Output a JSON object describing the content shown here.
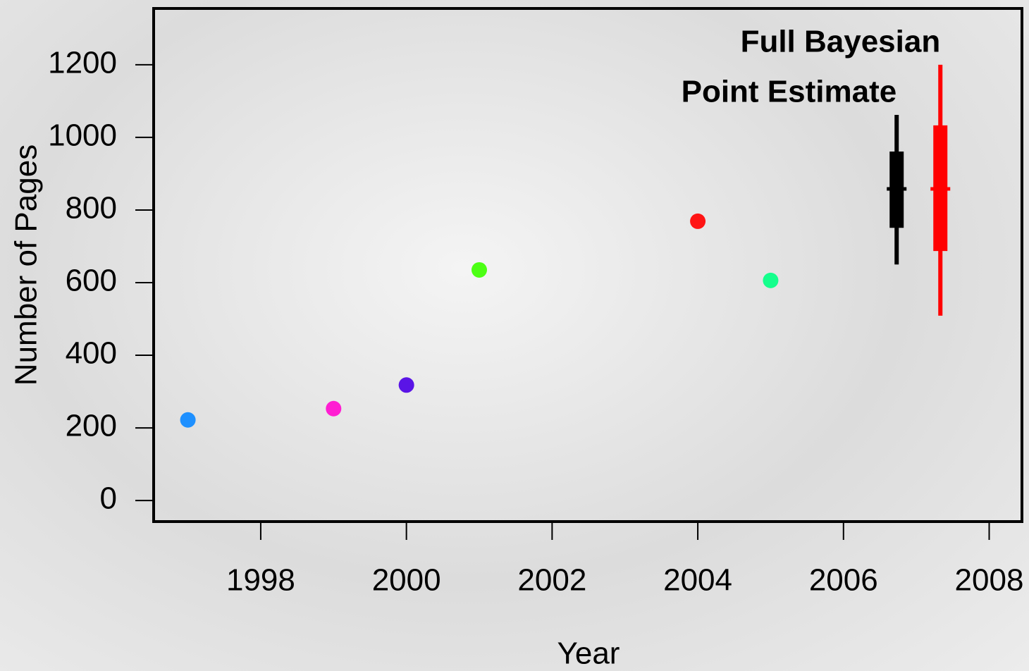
{
  "chart_data": {
    "type": "scatter",
    "x_label": "Year",
    "y_label": "Number of Pages",
    "x": [
      1997,
      1999,
      2000,
      2001,
      2004,
      2005
    ],
    "values": [
      222,
      253,
      318,
      635,
      769,
      606
    ],
    "colors": [
      "#1e90ff",
      "#ff1ed2",
      "#5a14e6",
      "#4cff14",
      "#ff1414",
      "#14ff8c"
    ],
    "intervals": [
      {
        "name": "Point Estimate",
        "color": "#000000",
        "x": 2006.73,
        "center": 858,
        "inner": [
          751,
          961
        ],
        "outer": [
          650,
          1062
        ]
      },
      {
        "name": "Full Bayesian",
        "color": "#ff0000",
        "x": 2007.33,
        "center": 858,
        "inner": [
          687,
          1033
        ],
        "outer": [
          509,
          1200
        ]
      }
    ],
    "xlim": [
      1996.53,
      2008.45
    ],
    "ylim": [
      -58,
      1355
    ],
    "xticks": [
      1998,
      2000,
      2002,
      2004,
      2006,
      2008
    ],
    "yticks": [
      0,
      200,
      400,
      600,
      800,
      1000,
      1200
    ]
  }
}
